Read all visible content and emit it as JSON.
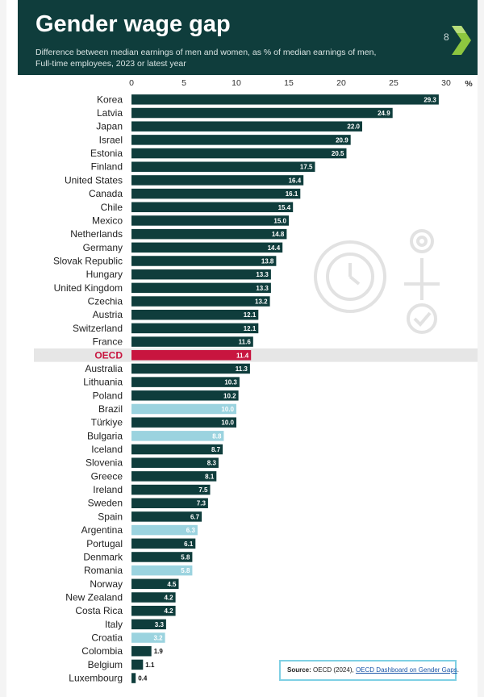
{
  "header": {
    "title": "Gender wage gap",
    "subtitle": "Difference between median earnings of men and women, as % of median earnings of men, Full-time employees, 2023 or latest year",
    "logo_number": "8"
  },
  "source": {
    "label": "Source:",
    "text": "OECD (2024),",
    "link": "OECD Dashboard on Gender Gaps",
    "end": "."
  },
  "colors": {
    "header_bg": "#0f3d3c",
    "bar_default": "#0f3d3c",
    "bar_highlight": "#c8153f",
    "bar_light": "#9bd3df",
    "oecd_band": "#e6e6e6"
  },
  "chart_data": {
    "type": "bar",
    "orientation": "horizontal",
    "xlim": [
      0,
      30
    ],
    "ticks": [
      0,
      5,
      10,
      15,
      20,
      25,
      30
    ],
    "unit_label": "%",
    "grid": false,
    "categories": [
      "Korea",
      "Latvia",
      "Japan",
      "Israel",
      "Estonia",
      "Finland",
      "United States",
      "Canada",
      "Chile",
      "Mexico",
      "Netherlands",
      "Germany",
      "Slovak Republic",
      "Hungary",
      "United Kingdom",
      "Czechia",
      "Austria",
      "Switzerland",
      "France",
      "OECD",
      "Australia",
      "Lithuania",
      "Poland",
      "Brazil",
      "Türkiye",
      "Bulgaria",
      "Iceland",
      "Slovenia",
      "Greece",
      "Ireland",
      "Sweden",
      "Spain",
      "Argentina",
      "Portugal",
      "Denmark",
      "Romania",
      "Norway",
      "New Zealand",
      "Costa Rica",
      "Italy",
      "Croatia",
      "Colombia",
      "Belgium",
      "Luxembourg"
    ],
    "values": [
      29.3,
      24.9,
      22.0,
      20.9,
      20.5,
      17.5,
      16.4,
      16.1,
      15.4,
      15.0,
      14.8,
      14.4,
      13.8,
      13.3,
      13.3,
      13.2,
      12.1,
      12.1,
      11.6,
      11.4,
      11.3,
      10.3,
      10.2,
      10.0,
      10.0,
      8.8,
      8.7,
      8.3,
      8.1,
      7.5,
      7.3,
      6.7,
      6.3,
      6.1,
      5.8,
      5.8,
      4.5,
      4.2,
      4.2,
      3.3,
      3.2,
      1.9,
      1.1,
      0.4
    ],
    "value_labels": [
      "29.3",
      "24.9",
      "22.0",
      "20.9",
      "20.5",
      "17.5",
      "16.4",
      "16.1",
      "15.4",
      "15.0",
      "14.8",
      "14.4",
      "13.8",
      "13.3",
      "13.3",
      "13.2",
      "12.1",
      "12.1",
      "11.6",
      "11.4",
      "11.3",
      "10.3",
      "10.2",
      "10.0",
      "10.0",
      "8.8",
      "8.7",
      "8.3",
      "8.1",
      "7.5",
      "7.3",
      "6.7",
      "6.3",
      "6.1",
      "5.8",
      "5.8",
      "4.5",
      "4.2",
      "4.2",
      "3.3",
      "3.2",
      "1.9",
      "1.1",
      "0.4"
    ],
    "highlight": [
      "OECD"
    ],
    "light": [
      "Brazil",
      "Bulgaria",
      "Argentina",
      "Romania",
      "Croatia"
    ]
  }
}
